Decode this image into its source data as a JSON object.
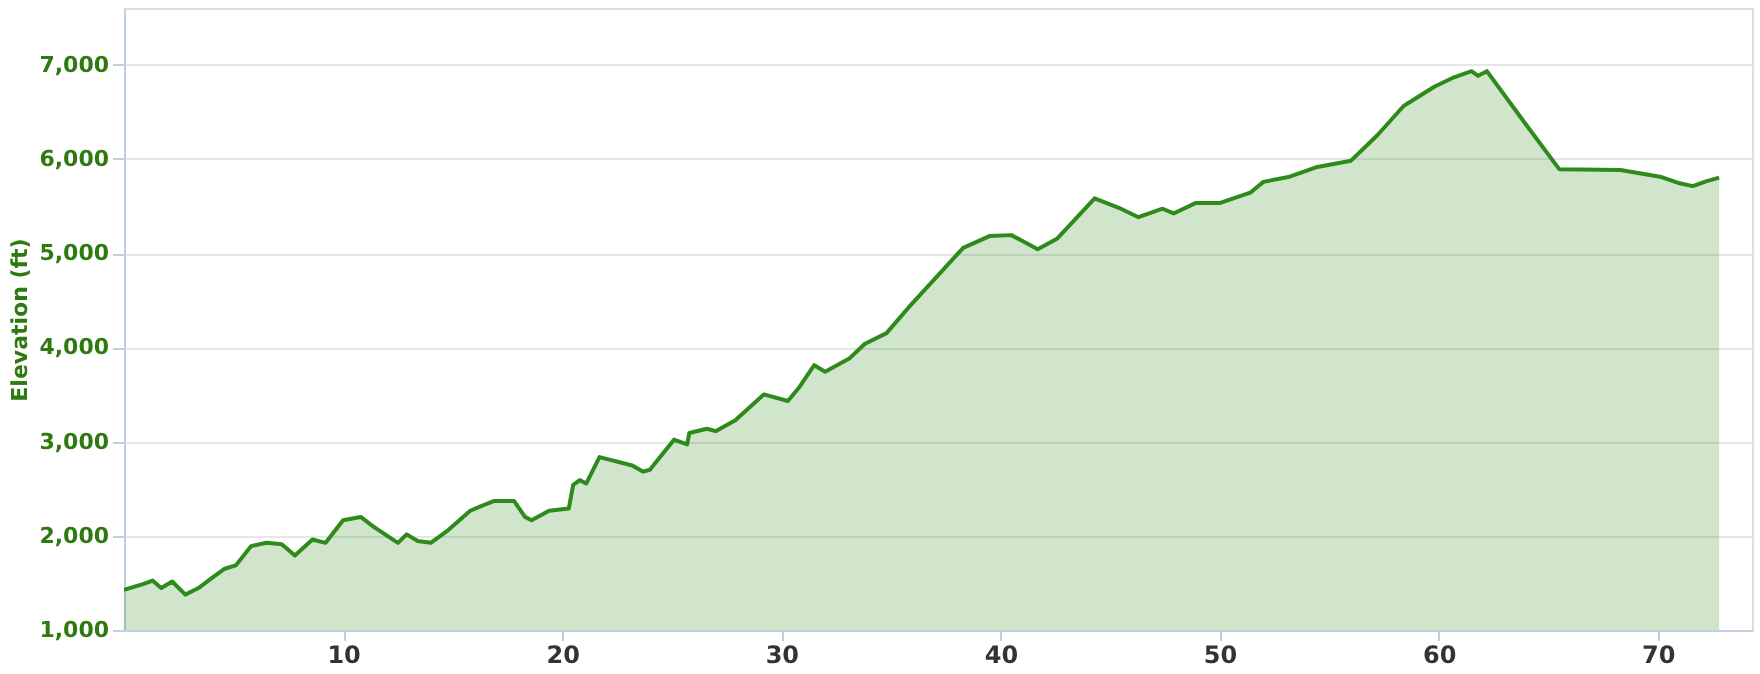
{
  "chart_data": {
    "type": "area",
    "ylabel": "Elevation (ft)",
    "x": [
      0,
      0.9,
      1.3,
      1.7,
      2.2,
      2.8,
      3.4,
      4.0,
      4.6,
      5.1,
      5.8,
      6.5,
      7.2,
      7.8,
      8.6,
      9.2,
      10.0,
      10.8,
      11.4,
      12.5,
      12.9,
      13.4,
      14.0,
      14.8,
      15.8,
      16.3,
      16.9,
      17.8,
      18.3,
      18.6,
      19.4,
      20.3,
      20.5,
      20.8,
      21.1,
      21.7,
      23.2,
      23.7,
      24.0,
      25.1,
      25.7,
      25.8,
      26.6,
      27.0,
      27.9,
      29.2,
      30.3,
      30.8,
      31.5,
      32.0,
      33.1,
      33.8,
      34.8,
      35.8,
      38.3,
      39.5,
      40.5,
      41.7,
      42.6,
      44.3,
      45.4,
      46.3,
      47.4,
      47.9,
      48.9,
      50.0,
      51.4,
      52.0,
      53.2,
      54.4,
      56.0,
      57.2,
      58.4,
      59.8,
      60.7,
      61.5,
      61.8,
      62.2,
      63.9,
      65.5,
      68.3,
      70.1,
      71.0,
      71.6,
      72.2,
      72.8
    ],
    "series": [
      {
        "color": "#2f8a1c",
        "values": [
          1425,
          1490,
          1525,
          1445,
          1515,
          1375,
          1445,
          1550,
          1650,
          1685,
          1890,
          1925,
          1910,
          1790,
          1960,
          1925,
          2165,
          2200,
          2095,
          1925,
          2015,
          1945,
          1925,
          2060,
          2265,
          2315,
          2370,
          2370,
          2200,
          2165,
          2265,
          2290,
          2540,
          2590,
          2555,
          2835,
          2745,
          2680,
          2700,
          3020,
          2970,
          3090,
          3135,
          3110,
          3225,
          3500,
          3430,
          3570,
          3810,
          3740,
          3880,
          4035,
          4150,
          4420,
          5055,
          5180,
          5190,
          5040,
          5155,
          5580,
          5480,
          5380,
          5470,
          5420,
          5530,
          5530,
          5640,
          5755,
          5810,
          5910,
          5980,
          6250,
          6560,
          6765,
          6865,
          6930,
          6880,
          6930,
          6390,
          5890,
          5880,
          5810,
          5740,
          5710,
          5760,
          5800
        ]
      }
    ],
    "xlim": [
      0,
      74.3
    ],
    "xticks": [
      10,
      20,
      30,
      40,
      50,
      60,
      70
    ],
    "ylim": [
      1000,
      7600
    ],
    "yticks": [
      {
        "value": 1000,
        "label": "1,000"
      },
      {
        "value": 2000,
        "label": "2,000"
      },
      {
        "value": 3000,
        "label": "3,000"
      },
      {
        "value": 4000,
        "label": "4,000"
      },
      {
        "value": 5000,
        "label": "5,000"
      },
      {
        "value": 6000,
        "label": "6,000"
      },
      {
        "value": 7000,
        "label": "7,000"
      }
    ],
    "grid": "y"
  }
}
